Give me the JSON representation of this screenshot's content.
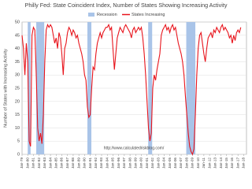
{
  "chart_data": {
    "type": "line",
    "title": "Philly Fed: State Coincident Index, Number of States Showing Increasing Activity",
    "y_label": "Number of States with Increasing Activity",
    "watermark": "http://www.calculatedriskblog.com/",
    "recession": {
      "name": "Recession",
      "color": "#a9c4e8",
      "periods": [
        [
          1980.0,
          1980.5
        ],
        [
          1981.5,
          1982.9
        ],
        [
          1990.5,
          1991.2
        ],
        [
          2001.2,
          2001.9
        ],
        [
          2007.9,
          2009.5
        ]
      ]
    },
    "x": [
      1979,
      1979.25,
      1979.5,
      1979.75,
      1980,
      1980.25,
      1980.5,
      1980.75,
      1981,
      1981.25,
      1981.5,
      1981.75,
      1982,
      1982.25,
      1982.5,
      1982.75,
      1983,
      1983.25,
      1983.5,
      1983.75,
      1984,
      1984.25,
      1984.5,
      1984.75,
      1985,
      1985.25,
      1985.5,
      1985.75,
      1986,
      1986.25,
      1986.5,
      1986.75,
      1987,
      1987.25,
      1987.5,
      1987.75,
      1988,
      1988.25,
      1988.5,
      1988.75,
      1989,
      1989.25,
      1989.5,
      1989.75,
      1990,
      1990.25,
      1990.5,
      1990.75,
      1991,
      1991.25,
      1991.5,
      1991.75,
      1992,
      1992.25,
      1992.5,
      1992.75,
      1993,
      1993.25,
      1993.5,
      1993.75,
      1994,
      1994.25,
      1994.5,
      1994.75,
      1995,
      1995.25,
      1995.5,
      1995.75,
      1996,
      1996.25,
      1996.5,
      1996.75,
      1997,
      1997.25,
      1997.5,
      1997.75,
      1998,
      1998.25,
      1998.5,
      1998.75,
      1999,
      1999.25,
      1999.5,
      1999.75,
      2000,
      2000.25,
      2000.5,
      2000.75,
      2001,
      2001.25,
      2001.5,
      2001.75,
      2002,
      2002.25,
      2002.5,
      2002.75,
      2003,
      2003.25,
      2003.5,
      2003.75,
      2004,
      2004.25,
      2004.5,
      2004.75,
      2005,
      2005.25,
      2005.5,
      2005.75,
      2006,
      2006.25,
      2006.5,
      2006.75,
      2007,
      2007.25,
      2007.5,
      2007.75,
      2008,
      2008.25,
      2008.5,
      2008.75,
      2009,
      2009.25,
      2009.5,
      2009.75,
      2010,
      2010.25,
      2010.5,
      2010.75,
      2011,
      2011.25,
      2011.5,
      2011.75,
      2012,
      2012.25,
      2012.5,
      2012.75,
      2013,
      2013.25,
      2013.5,
      2013.75,
      2014,
      2014.25,
      2014.5,
      2014.75,
      2015,
      2015.25,
      2015.5,
      2015.75,
      2016,
      2016.25,
      2016.5,
      2016.75,
      2017,
      2017.25,
      2017.5
    ],
    "series": [
      {
        "name": "States Increasing",
        "color": "#e8141c",
        "values": [
          45,
          40,
          30,
          42,
          35,
          5,
          3,
          45,
          48,
          47,
          30,
          10,
          5,
          8,
          4,
          15,
          35,
          47,
          49,
          48,
          49,
          48,
          45,
          42,
          44,
          40,
          46,
          44,
          38,
          30,
          40,
          42,
          46,
          48,
          47,
          45,
          47,
          46,
          44,
          45,
          42,
          40,
          38,
          35,
          30,
          28,
          18,
          14,
          15,
          25,
          33,
          32,
          38,
          42,
          44,
          46,
          44,
          46,
          47,
          48,
          48,
          49,
          47,
          48,
          40,
          32,
          38,
          44,
          46,
          48,
          47,
          46,
          48,
          49,
          48,
          47,
          46,
          44,
          47,
          48,
          46,
          47,
          48,
          47,
          48,
          44,
          38,
          30,
          20,
          10,
          5,
          8,
          25,
          30,
          28,
          32,
          35,
          38,
          45,
          47,
          48,
          49,
          47,
          48,
          46,
          48,
          49,
          47,
          48,
          45,
          42,
          40,
          38,
          35,
          30,
          22,
          15,
          8,
          3,
          1,
          0,
          2,
          15,
          30,
          40,
          45,
          46,
          42,
          38,
          35,
          40,
          44,
          45,
          46,
          44,
          47,
          46,
          48,
          47,
          46,
          48,
          49,
          47,
          48,
          47,
          46,
          44,
          45,
          42,
          45,
          43,
          46,
          47,
          46,
          48
        ]
      }
    ],
    "xlim": [
      1979,
      2018.5
    ],
    "xticks": [
      {
        "value": 1979,
        "label": "Jan-79"
      },
      {
        "value": 1980,
        "label": "Jan-80"
      },
      {
        "value": 1981,
        "label": "Jan-81"
      },
      {
        "value": 1982,
        "label": "Jan-82"
      },
      {
        "value": 1983,
        "label": "Jan-83"
      },
      {
        "value": 1984,
        "label": "Jan-84"
      },
      {
        "value": 1985,
        "label": "Jan-85"
      },
      {
        "value": 1986,
        "label": "Jan-86"
      },
      {
        "value": 1987,
        "label": "Jan-87"
      },
      {
        "value": 1988,
        "label": "Jan-88"
      },
      {
        "value": 1989,
        "label": "Jan-89"
      },
      {
        "value": 1990,
        "label": "Jan-90"
      },
      {
        "value": 1991,
        "label": "Jan-91"
      },
      {
        "value": 1992,
        "label": "Jan-92"
      },
      {
        "value": 1993,
        "label": "Jan-93"
      },
      {
        "value": 1994,
        "label": "Jan-94"
      },
      {
        "value": 1995,
        "label": "Jan-95"
      },
      {
        "value": 1996,
        "label": "Jan-96"
      },
      {
        "value": 1997,
        "label": "Jan-97"
      },
      {
        "value": 1998,
        "label": "Jan-98"
      },
      {
        "value": 1999,
        "label": "Jan-99"
      },
      {
        "value": 2000,
        "label": "Jan-00"
      },
      {
        "value": 2001,
        "label": "Jan-01"
      },
      {
        "value": 2002,
        "label": "Jan-02"
      },
      {
        "value": 2003,
        "label": "Jan-03"
      },
      {
        "value": 2004,
        "label": "Jan-04"
      },
      {
        "value": 2005,
        "label": "Jan-05"
      },
      {
        "value": 2006,
        "label": "Jan-06"
      },
      {
        "value": 2007,
        "label": "Jan-07"
      },
      {
        "value": 2008,
        "label": "Jan-08"
      },
      {
        "value": 2009,
        "label": "Jan-09"
      },
      {
        "value": 2010,
        "label": "Jan-10"
      },
      {
        "value": 2011,
        "label": "Jan-11"
      },
      {
        "value": 2012,
        "label": "Jan-12"
      },
      {
        "value": 2013,
        "label": "Jan-13"
      },
      {
        "value": 2014,
        "label": "Jan-14"
      },
      {
        "value": 2015,
        "label": "Jan-15"
      },
      {
        "value": 2016,
        "label": "Jan-16"
      },
      {
        "value": 2017,
        "label": "Jan-17"
      },
      {
        "value": 2018,
        "label": "Jan-18"
      }
    ],
    "ylim": [
      0,
      50
    ],
    "yticks": [
      0,
      5,
      10,
      15,
      20,
      25,
      30,
      35,
      40,
      45,
      50
    ],
    "grid": true
  }
}
